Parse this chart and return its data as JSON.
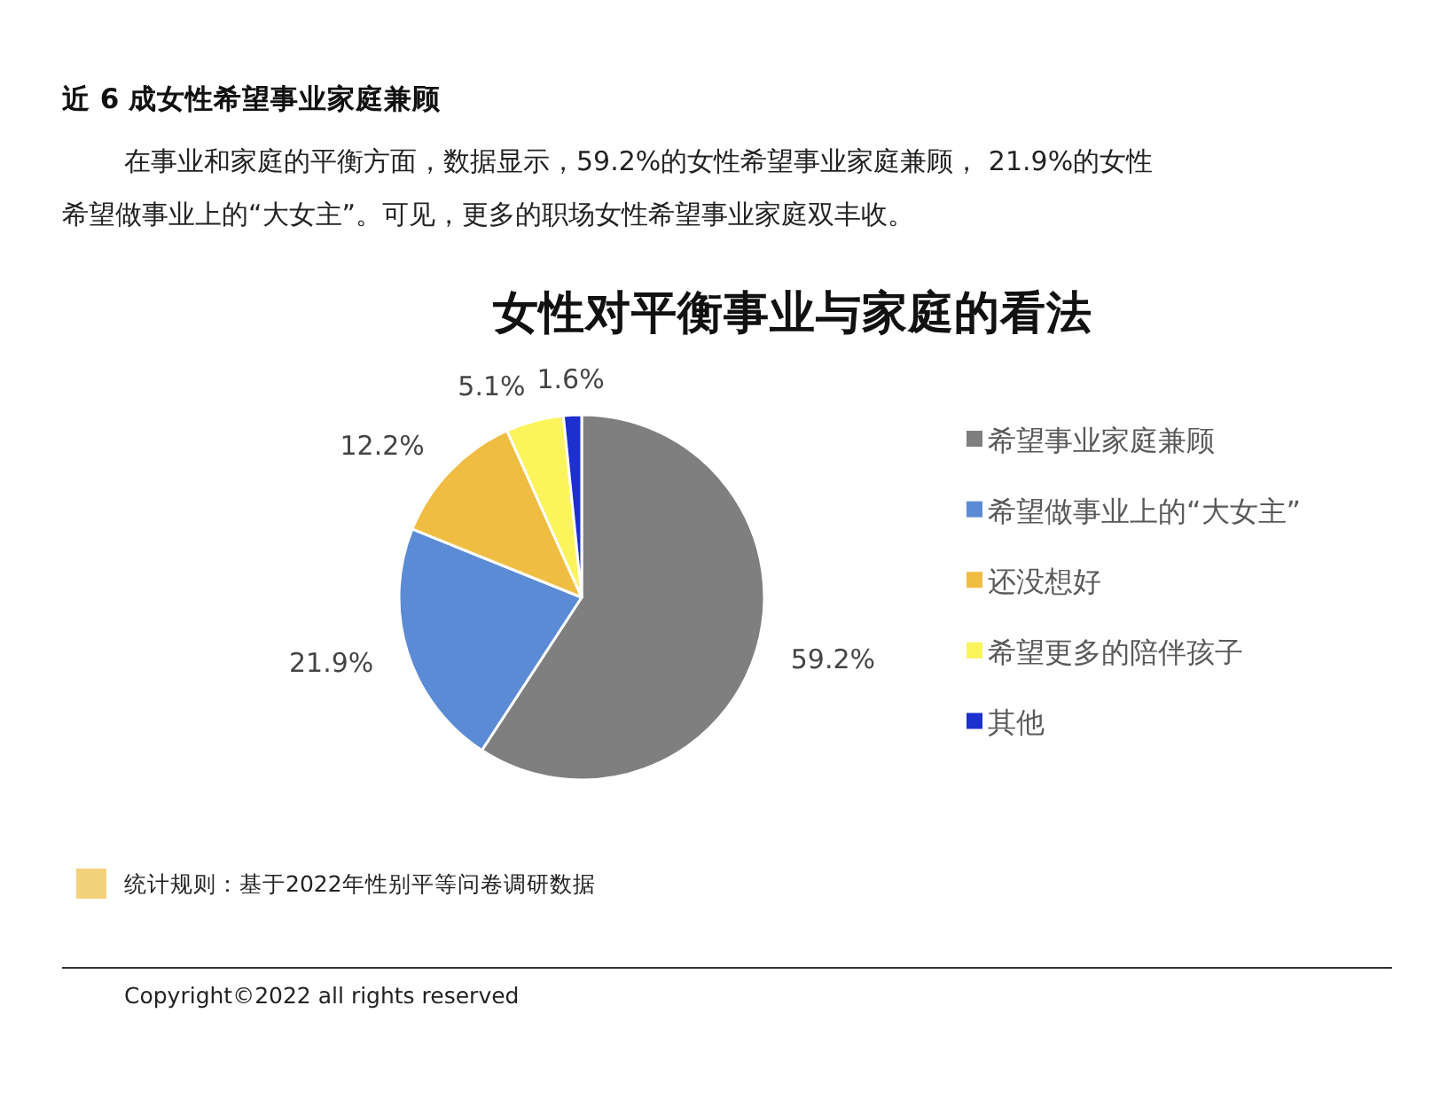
{
  "chart_data": {
    "type": "pie",
    "title": "女性对平衡事业与家庭的看法",
    "categories": [
      "希望事业家庭兼顾",
      "希望做事业上的“大女主”",
      "还没想好",
      "希望更多的陪伴孩子",
      "其他"
    ],
    "values": [
      59.2,
      21.9,
      12.2,
      5.1,
      1.6
    ],
    "colors": [
      "#7f7f7f",
      "#5b8bd5",
      "#f0bd43",
      "#fbf45b",
      "#1c2fcf"
    ],
    "value_labels": [
      "59.2%",
      "21.9%",
      "12.2%",
      "5.1%",
      "1.6%"
    ],
    "legend": "right",
    "annotations": [
      "近 6 成女性希望事业家庭兼顾",
      "在事业和家庭的平衡方面，数据显示，59.2%的女性希望事业家庭兼顾， 21.9%的女性希望做事业上的“大女主”。可见，更多的职场女性希望事业家庭双丰收。",
      "统计规则：基于2022年性别平等问卷调研数据",
      "Copyright©2022 all rights reserved"
    ]
  }
}
